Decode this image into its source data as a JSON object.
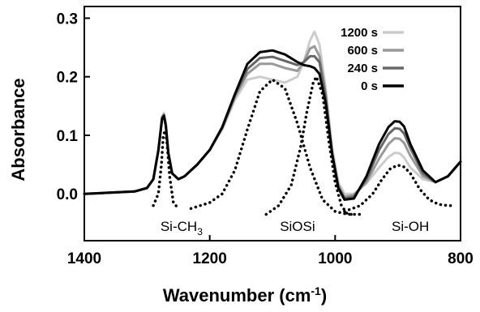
{
  "chart_data": {
    "type": "line",
    "xlabel": "Wavenumber (cm",
    "xlabel_sup": "-1",
    "xlabel_end": ")",
    "ylabel": "Absorbance",
    "xlim": [
      1400,
      800
    ],
    "ylim": [
      -0.08,
      0.32
    ],
    "x_reversed": true,
    "xticks": [
      1400,
      1200,
      1000,
      800
    ],
    "xtick_labels": [
      "1400",
      "1200",
      "1000",
      "800"
    ],
    "yticks": [
      0.0,
      0.1,
      0.2,
      0.3
    ],
    "ytick_labels": [
      "0.0",
      "0.1",
      "0.2",
      "0.3"
    ],
    "grid": false,
    "legend_position": "top-right",
    "series": [
      {
        "name": "1200 s",
        "color": "#cccccc",
        "style": "solid",
        "x": [
          1400,
          1360,
          1320,
          1300,
          1290,
          1282,
          1276,
          1273,
          1270,
          1266,
          1260,
          1250,
          1240,
          1220,
          1200,
          1180,
          1160,
          1140,
          1120,
          1100,
          1080,
          1060,
          1050,
          1040,
          1033,
          1025,
          1015,
          1005,
          995,
          985,
          970,
          950,
          930,
          915,
          905,
          897,
          890,
          880,
          860,
          840,
          820,
          800
        ],
        "y": [
          0.0,
          0.002,
          0.004,
          0.01,
          0.025,
          0.075,
          0.132,
          0.138,
          0.12,
          0.07,
          0.035,
          0.025,
          0.03,
          0.05,
          0.075,
          0.11,
          0.16,
          0.195,
          0.2,
          0.195,
          0.19,
          0.2,
          0.225,
          0.262,
          0.277,
          0.255,
          0.18,
          0.08,
          0.02,
          0.0,
          0.0,
          0.018,
          0.045,
          0.063,
          0.07,
          0.069,
          0.062,
          0.045,
          0.025,
          0.02,
          0.03,
          0.055
        ]
      },
      {
        "name": "600 s",
        "color": "#999999",
        "style": "solid",
        "x": [
          1400,
          1360,
          1320,
          1300,
          1290,
          1282,
          1276,
          1273,
          1270,
          1266,
          1260,
          1250,
          1240,
          1220,
          1200,
          1180,
          1160,
          1140,
          1120,
          1100,
          1080,
          1060,
          1050,
          1040,
          1033,
          1025,
          1015,
          1005,
          995,
          985,
          970,
          950,
          930,
          915,
          905,
          897,
          890,
          880,
          860,
          840,
          820,
          800
        ],
        "y": [
          0.0,
          0.002,
          0.004,
          0.01,
          0.025,
          0.074,
          0.13,
          0.135,
          0.118,
          0.07,
          0.035,
          0.025,
          0.03,
          0.05,
          0.075,
          0.112,
          0.165,
          0.205,
          0.222,
          0.222,
          0.215,
          0.21,
          0.225,
          0.248,
          0.252,
          0.235,
          0.17,
          0.07,
          0.015,
          -0.005,
          -0.002,
          0.02,
          0.06,
          0.085,
          0.095,
          0.094,
          0.087,
          0.065,
          0.03,
          0.02,
          0.03,
          0.055
        ]
      },
      {
        "name": "240 s",
        "color": "#666666",
        "style": "solid",
        "x": [
          1400,
          1360,
          1320,
          1300,
          1290,
          1282,
          1276,
          1273,
          1270,
          1266,
          1260,
          1250,
          1240,
          1220,
          1200,
          1180,
          1160,
          1140,
          1120,
          1100,
          1080,
          1060,
          1050,
          1040,
          1033,
          1025,
          1015,
          1005,
          995,
          985,
          970,
          950,
          930,
          915,
          905,
          897,
          890,
          880,
          860,
          840,
          820,
          800
        ],
        "y": [
          0.0,
          0.002,
          0.004,
          0.01,
          0.025,
          0.074,
          0.13,
          0.135,
          0.118,
          0.07,
          0.035,
          0.025,
          0.03,
          0.05,
          0.075,
          0.113,
          0.168,
          0.213,
          0.232,
          0.234,
          0.227,
          0.22,
          0.225,
          0.235,
          0.235,
          0.225,
          0.165,
          0.07,
          0.012,
          -0.008,
          -0.005,
          0.025,
          0.075,
          0.102,
          0.112,
          0.111,
          0.103,
          0.078,
          0.035,
          0.02,
          0.03,
          0.055
        ]
      },
      {
        "name": "0 s",
        "color": "#000000",
        "style": "solid",
        "x": [
          1400,
          1360,
          1320,
          1300,
          1290,
          1282,
          1276,
          1273,
          1270,
          1266,
          1260,
          1250,
          1240,
          1220,
          1200,
          1180,
          1160,
          1140,
          1120,
          1100,
          1080,
          1060,
          1050,
          1040,
          1033,
          1025,
          1015,
          1005,
          995,
          985,
          970,
          950,
          930,
          915,
          905,
          897,
          890,
          880,
          860,
          840,
          820,
          800
        ],
        "y": [
          0.0,
          0.002,
          0.004,
          0.01,
          0.025,
          0.074,
          0.128,
          0.133,
          0.116,
          0.07,
          0.035,
          0.025,
          0.03,
          0.05,
          0.075,
          0.114,
          0.17,
          0.222,
          0.242,
          0.245,
          0.238,
          0.225,
          0.22,
          0.218,
          0.215,
          0.205,
          0.155,
          0.07,
          0.01,
          -0.01,
          -0.008,
          0.03,
          0.085,
          0.114,
          0.124,
          0.123,
          0.115,
          0.085,
          0.04,
          0.02,
          0.03,
          0.055
        ]
      },
      {
        "name": "",
        "color": "#000000",
        "style": "dotted",
        "x": [
          1290,
          1282,
          1277,
          1274,
          1271,
          1268,
          1264,
          1258,
          1250
        ],
        "y": [
          -0.02,
          0.0,
          0.05,
          0.1,
          0.108,
          0.085,
          0.03,
          -0.015,
          -0.025
        ]
      },
      {
        "name": "",
        "color": "#000000",
        "style": "dotted",
        "x": [
          1230,
          1200,
          1180,
          1160,
          1140,
          1120,
          1100,
          1080,
          1060,
          1040,
          1020,
          1000,
          980,
          960
        ],
        "y": [
          -0.025,
          -0.015,
          0.0,
          0.04,
          0.11,
          0.175,
          0.195,
          0.18,
          0.12,
          0.045,
          -0.01,
          -0.03,
          -0.035,
          -0.035
        ]
      },
      {
        "name": "",
        "color": "#000000",
        "style": "dotted",
        "x": [
          1110,
          1090,
          1070,
          1055,
          1045,
          1035,
          1030,
          1020,
          1010,
          1000,
          990,
          980,
          970
        ],
        "y": [
          -0.035,
          -0.02,
          0.015,
          0.08,
          0.14,
          0.19,
          0.2,
          0.17,
          0.09,
          0.02,
          -0.02,
          -0.035,
          -0.035
        ]
      },
      {
        "name": "",
        "color": "#000000",
        "style": "dotted",
        "x": [
          985,
          960,
          940,
          925,
          912,
          900,
          890,
          880,
          865,
          850,
          835,
          820,
          810
        ],
        "y": [
          -0.03,
          -0.02,
          0.0,
          0.025,
          0.043,
          0.049,
          0.046,
          0.035,
          0.008,
          -0.01,
          -0.018,
          -0.02,
          -0.02
        ]
      }
    ],
    "annotations": [
      {
        "text": "Si-CH",
        "sub": "3",
        "x": 1245,
        "y": -0.055
      },
      {
        "text": "SiOSi",
        "sub": "",
        "x": 1060,
        "y": -0.055
      },
      {
        "text": "Si-OH",
        "sub": "",
        "x": 880,
        "y": -0.055
      }
    ]
  }
}
